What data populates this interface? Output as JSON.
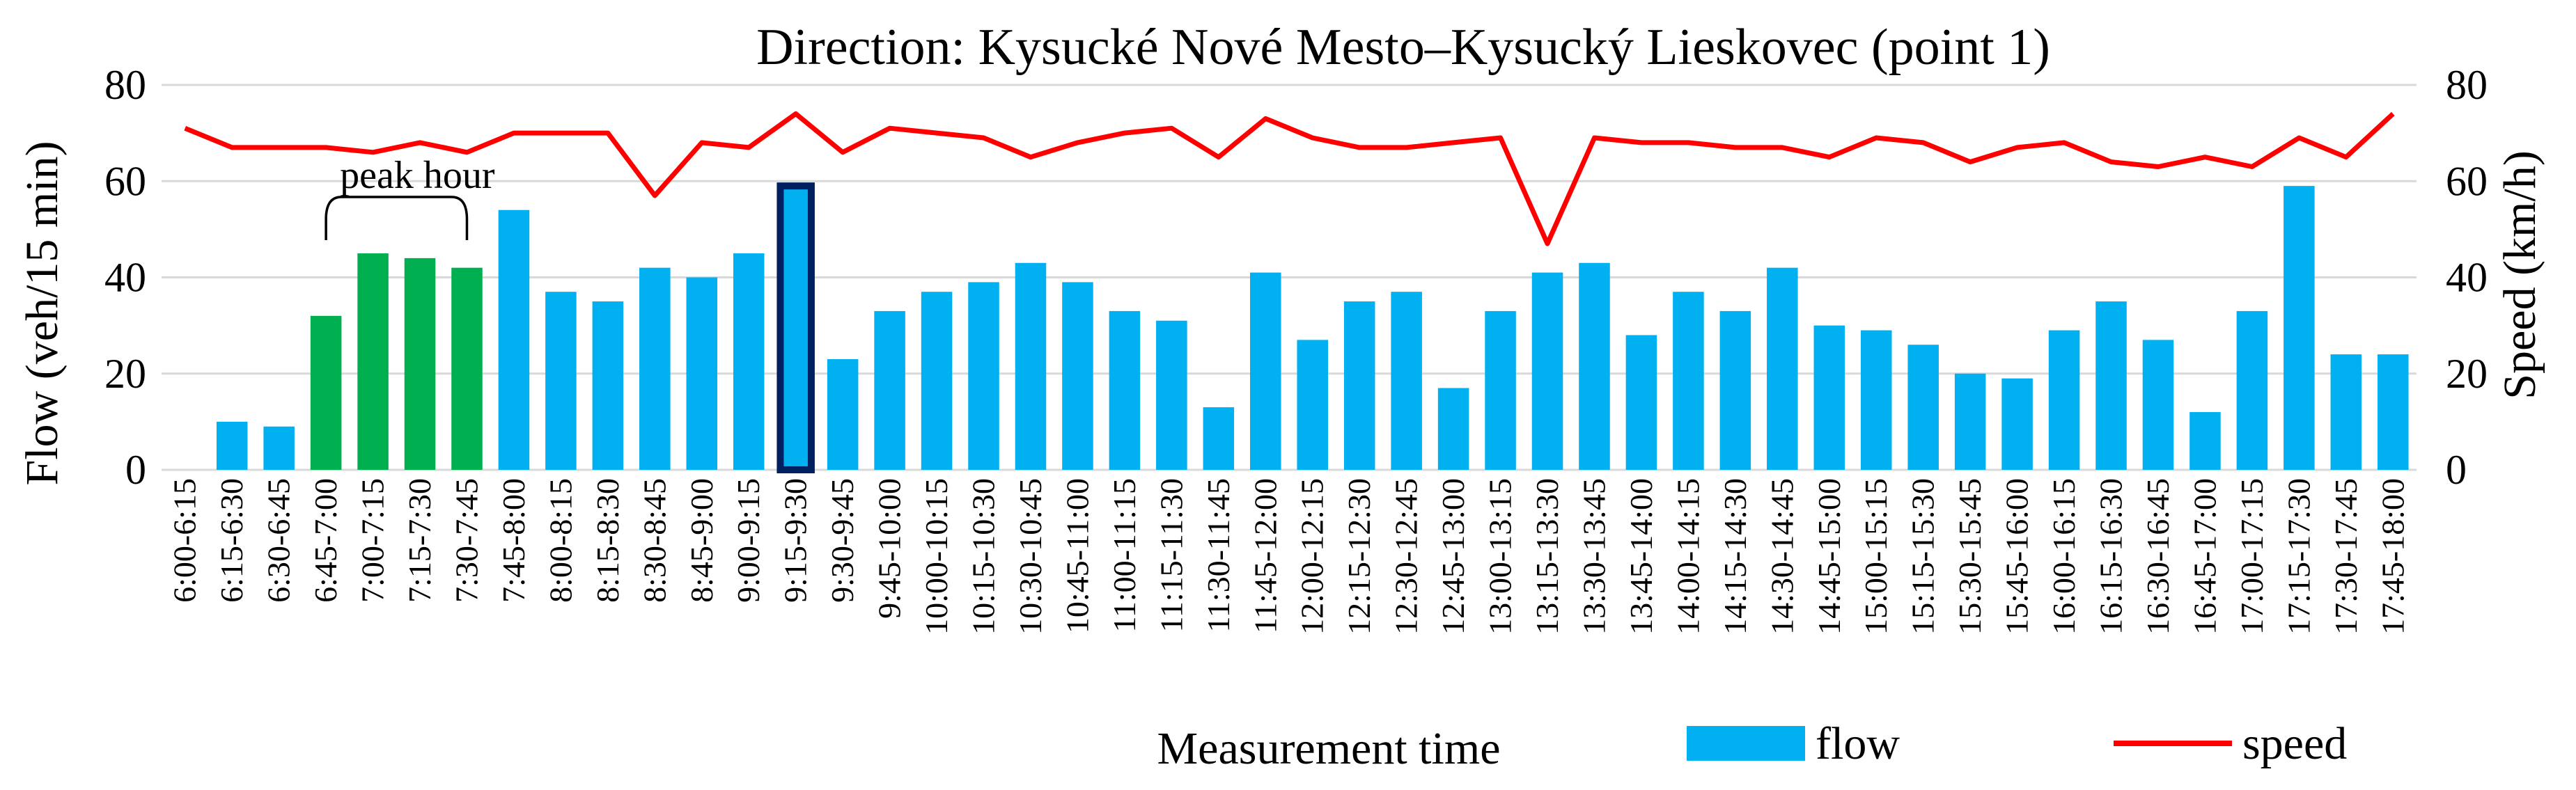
{
  "chart_data": {
    "type": "bar+line",
    "title": "Direction: Kysucké Nové Mesto–Kysucký Lieskovec (point 1)",
    "xlabel": "Measurement time",
    "ylabel_left": "Flow (veh/15 min)",
    "ylabel_right": "Speed (km/h)",
    "ylim_left": [
      0,
      80
    ],
    "ylim_right": [
      0,
      80
    ],
    "yticks_left": [
      0,
      20,
      40,
      60,
      80
    ],
    "yticks_right": [
      0,
      20,
      40,
      60,
      80
    ],
    "grid": true,
    "legend_position": "bottom-right",
    "categories": [
      "6:00-6:15",
      "6:15-6:30",
      "6:30-6:45",
      "6:45-7:00",
      "7:00-7:15",
      "7:15-7:30",
      "7:30-7:45",
      "7:45-8:00",
      "8:00-8:15",
      "8:15-8:30",
      "8:30-8:45",
      "8:45-9:00",
      "9:00-9:15",
      "9:15-9:30",
      "9:30-9:45",
      "9:45-10:00",
      "10:00-10:15",
      "10:15-10:30",
      "10:30-10:45",
      "10:45-11:00",
      "11:00-11:15",
      "11:15-11:30",
      "11:30-11:45",
      "11:45-12:00",
      "12:00-12:15",
      "12:15-12:30",
      "12:30-12:45",
      "12:45-13:00",
      "13:00-13:15",
      "13:15-13:30",
      "13:30-13:45",
      "13:45-14:00",
      "14:00-14:15",
      "14:15-14:30",
      "14:30-14:45",
      "14:45-15:00",
      "15:00-15:15",
      "15:15-15:30",
      "15:30-15:45",
      "15:45-16:00",
      "16:00-16:15",
      "16:15-16:30",
      "16:30-16:45",
      "16:45-17:00",
      "17:00-17:15",
      "17:15-17:30",
      "17:30-17:45",
      "17:45-18:00"
    ],
    "series": [
      {
        "name": "flow",
        "type": "bar",
        "axis": "left",
        "color": "#00b0f0",
        "values": [
          0,
          10,
          9,
          32,
          45,
          44,
          42,
          54,
          37,
          35,
          42,
          40,
          45,
          59,
          23,
          33,
          37,
          39,
          43,
          39,
          33,
          31,
          13,
          41,
          27,
          35,
          37,
          17,
          33,
          41,
          43,
          28,
          37,
          33,
          42,
          30,
          29,
          26,
          20,
          19,
          29,
          35,
          27,
          12,
          33,
          59,
          24,
          24
        ]
      },
      {
        "name": "speed",
        "type": "line",
        "axis": "right",
        "color": "#ff0000",
        "values": [
          71,
          67,
          67,
          67,
          66,
          68,
          66,
          70,
          70,
          70,
          57,
          68,
          67,
          74,
          66,
          71,
          70,
          69,
          65,
          68,
          70,
          71,
          65,
          73,
          69,
          67,
          67,
          68,
          69,
          47,
          69,
          68,
          68,
          67,
          67,
          65,
          69,
          68,
          64,
          67,
          68,
          64,
          63,
          65,
          63,
          69,
          65,
          74
        ]
      }
    ],
    "peak_hour_color": "#00b050",
    "peak_hour_indices": [
      3,
      4,
      5,
      6
    ],
    "highlight_index": 13,
    "highlight_color": "#002060",
    "annotations": [
      {
        "text": "peak hour",
        "start_index": 3,
        "end_index": 6
      }
    ]
  }
}
